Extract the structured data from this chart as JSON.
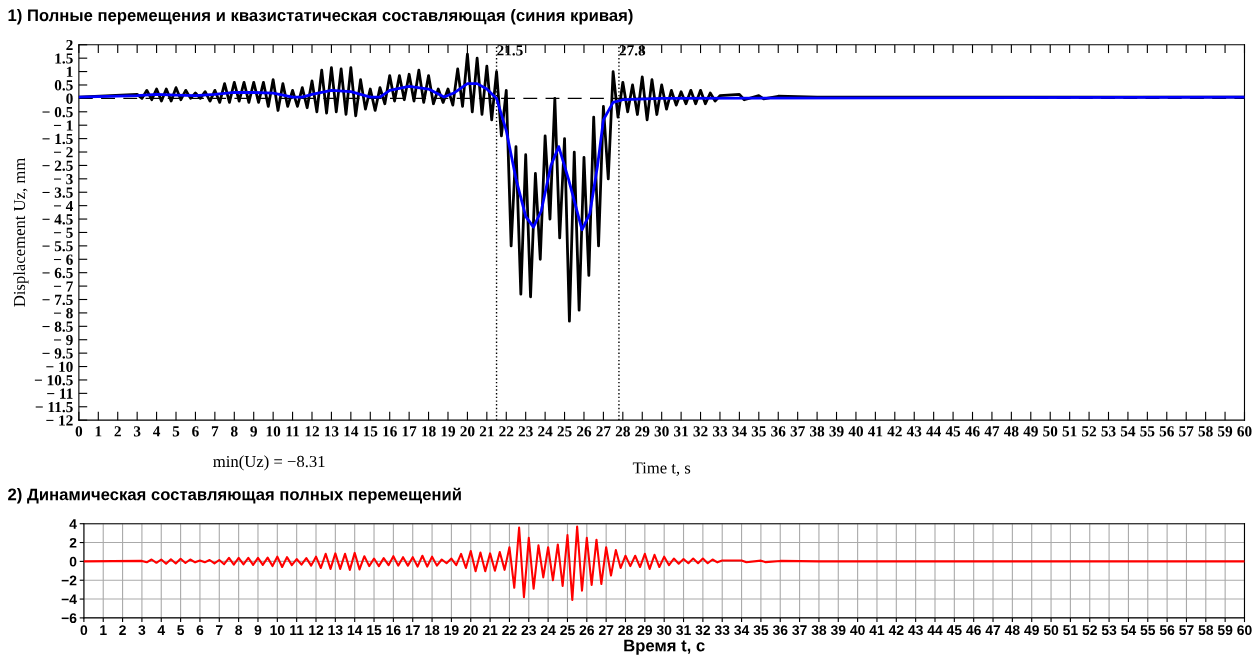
{
  "chart_data": [
    {
      "type": "line",
      "title": "1) Полные перемещения и квазистатическая составляющая (синия кривая)",
      "xlabel": "Time t, s",
      "ylabel": "Displacement Uz, mm",
      "xlim": [
        0,
        60
      ],
      "xticks": [
        0,
        1,
        2,
        3,
        4,
        5,
        6,
        7,
        8,
        9,
        10,
        11,
        12,
        13,
        14,
        15,
        16,
        17,
        18,
        19,
        20,
        21,
        22,
        23,
        24,
        25,
        26,
        27,
        28,
        29,
        30,
        31,
        32,
        33,
        34,
        35,
        36,
        37,
        38,
        39,
        40,
        41,
        42,
        43,
        44,
        45,
        46,
        47,
        48,
        49,
        50,
        51,
        52,
        53,
        54,
        55,
        56,
        57,
        58,
        59,
        60
      ],
      "ylim": [
        -12,
        2
      ],
      "yticks": [
        2,
        1.5,
        1,
        0.5,
        0,
        {
          "value": -0.5,
          "label": "− 0.5"
        },
        {
          "value": -1,
          "label": "− 1"
        },
        {
          "value": -1.5,
          "label": "− 1.5"
        },
        {
          "value": -2,
          "label": "− 2"
        },
        {
          "value": -2.5,
          "label": "− 2.5"
        },
        {
          "value": -3,
          "label": "− 3"
        },
        {
          "value": -3.5,
          "label": "− 3.5"
        },
        {
          "value": -4,
          "label": "− 4"
        },
        {
          "value": -4.5,
          "label": "− 4.5"
        },
        {
          "value": -5,
          "label": "− 5"
        },
        {
          "value": -5.5,
          "label": "− 5.5"
        },
        {
          "value": -6,
          "label": "− 6"
        },
        {
          "value": -6.5,
          "label": "− 6.5"
        },
        {
          "value": -7,
          "label": "− 7"
        },
        {
          "value": -7.5,
          "label": "− 7.5"
        },
        {
          "value": -8,
          "label": "− 8"
        },
        {
          "value": -8.5,
          "label": "− 8.5"
        },
        {
          "value": -9,
          "label": "− 9"
        },
        {
          "value": -9.5,
          "label": "− 9.5"
        },
        {
          "value": -10,
          "label": "− 10"
        },
        {
          "value": -10.5,
          "label": "− 10.5"
        },
        {
          "value": -11,
          "label": "− 11"
        },
        {
          "value": -11.5,
          "label": "− 11.5"
        },
        {
          "value": -12,
          "label": "− 12"
        }
      ],
      "grid": false,
      "legend": false,
      "annotations": [
        "min(Uz) = −8.31"
      ],
      "ref_lines": [
        {
          "axis": "y",
          "value": 0,
          "color": "#000000",
          "line_style": "dashed"
        },
        {
          "axis": "x",
          "value": 21.5,
          "label": "21.5",
          "color": "#000000",
          "line_style": "dotted"
        },
        {
          "axis": "x",
          "value": 27.8,
          "label": "27.8",
          "color": "#000000",
          "line_style": "dotted"
        }
      ],
      "series": [
        {
          "color": "#000000",
          "x": [
            0,
            3,
            3.25,
            3.5,
            3.75,
            4,
            4.25,
            4.5,
            4.75,
            5,
            5.25,
            5.5,
            5.75,
            6,
            6.25,
            6.5,
            6.75,
            7,
            7.25,
            7.5,
            7.75,
            8,
            8.25,
            8.5,
            8.75,
            9,
            9.25,
            9.5,
            9.75,
            10,
            10.25,
            10.5,
            10.75,
            11,
            11.25,
            11.5,
            11.75,
            12,
            12.25,
            12.5,
            12.75,
            13,
            13.25,
            13.5,
            13.75,
            14,
            14.25,
            14.5,
            14.75,
            15,
            15.25,
            15.5,
            15.75,
            16,
            16.25,
            16.5,
            16.75,
            17,
            17.25,
            17.5,
            17.75,
            18,
            18.25,
            18.5,
            18.75,
            19,
            19.25,
            19.5,
            19.75,
            20,
            20.25,
            20.5,
            20.75,
            21,
            21.25,
            21.5,
            21.75,
            22,
            22.25,
            22.5,
            22.75,
            23,
            23.25,
            23.5,
            23.75,
            24,
            24.25,
            24.5,
            24.75,
            25,
            25.25,
            25.5,
            25.75,
            26,
            26.25,
            26.5,
            26.75,
            27,
            27.25,
            27.5,
            27.75,
            28,
            28.25,
            28.5,
            28.75,
            29,
            29.25,
            29.5,
            29.75,
            30,
            30.25,
            30.5,
            30.75,
            31,
            31.25,
            31.5,
            31.75,
            32,
            32.25,
            32.5,
            32.75,
            33,
            34,
            34.25,
            35,
            35.25,
            36,
            38,
            40,
            60
          ],
          "values": [
            0.05,
            0.15,
            0.0,
            0.3,
            -0.05,
            0.35,
            -0.1,
            0.35,
            -0.1,
            0.4,
            -0.05,
            0.3,
            0.0,
            0.2,
            0.0,
            0.25,
            -0.1,
            0.3,
            -0.15,
            0.55,
            -0.15,
            0.6,
            -0.1,
            0.6,
            -0.15,
            0.6,
            -0.15,
            0.6,
            -0.3,
            0.7,
            -0.45,
            0.55,
            -0.3,
            0.3,
            -0.3,
            0.4,
            -0.35,
            0.65,
            -0.5,
            1.05,
            -0.55,
            1.15,
            -0.5,
            1.1,
            -0.6,
            1.15,
            -0.65,
            0.7,
            -0.4,
            0.35,
            -0.45,
            0.4,
            -0.2,
            0.85,
            -0.1,
            0.85,
            -0.05,
            0.9,
            -0.1,
            1.05,
            -0.15,
            0.85,
            -0.2,
            0.35,
            -0.15,
            0.35,
            -0.25,
            1.1,
            -0.3,
            1.65,
            -0.5,
            1.5,
            -0.6,
            1.2,
            -0.8,
            1.0,
            -1.4,
            0.3,
            -5.5,
            -1.8,
            -7.3,
            -2.1,
            -7.4,
            -2.8,
            -6.0,
            -1.4,
            -4.5,
            0.0,
            -5.2,
            -1.5,
            -8.31,
            -2.0,
            -7.9,
            -2.2,
            -6.6,
            -0.7,
            -5.5,
            -0.3,
            -3.0,
            1.0,
            -0.7,
            0.6,
            -0.5,
            0.5,
            -0.6,
            0.8,
            -0.8,
            0.7,
            -0.6,
            0.5,
            -0.4,
            0.3,
            -0.25,
            0.25,
            -0.2,
            0.3,
            -0.2,
            0.3,
            -0.2,
            0.2,
            -0.1,
            0.1,
            0.15,
            -0.05,
            0.1,
            -0.02,
            0.08,
            0.05,
            0.05,
            0.05
          ]
        },
        {
          "color": "#0000ff",
          "x": [
            0,
            3,
            4,
            5,
            6,
            7,
            8,
            9,
            10,
            11,
            11.5,
            12,
            13,
            14,
            15,
            15.5,
            16,
            17,
            18,
            18.8,
            19.3,
            20,
            20.5,
            21,
            21.5,
            22,
            22.5,
            23,
            23.4,
            23.8,
            24.3,
            24.7,
            25.2,
            25.9,
            26.3,
            26.7,
            27,
            27.5,
            28,
            30,
            60
          ],
          "values": [
            0.05,
            0.1,
            0.15,
            0.12,
            0.1,
            0.15,
            0.22,
            0.22,
            0.2,
            0.05,
            0.05,
            0.15,
            0.3,
            0.25,
            0.05,
            0.05,
            0.3,
            0.45,
            0.35,
            0.05,
            0.2,
            0.55,
            0.55,
            0.35,
            0.0,
            -1.2,
            -3.0,
            -4.4,
            -4.8,
            -4.2,
            -2.5,
            -1.8,
            -3.0,
            -4.9,
            -4.3,
            -2.5,
            -0.8,
            -0.15,
            -0.05,
            0.0,
            0.05
          ]
        }
      ]
    },
    {
      "type": "line",
      "title": "2) Динамическая составляющая полных перемещений",
      "xlabel": "Время t, с",
      "xlim": [
        0,
        60
      ],
      "xticks": [
        0,
        1,
        2,
        3,
        4,
        5,
        6,
        7,
        8,
        9,
        10,
        11,
        12,
        13,
        14,
        15,
        16,
        17,
        18,
        19,
        20,
        21,
        22,
        23,
        24,
        25,
        26,
        27,
        28,
        29,
        30,
        31,
        32,
        33,
        34,
        35,
        36,
        37,
        38,
        39,
        40,
        41,
        42,
        43,
        44,
        45,
        46,
        47,
        48,
        49,
        50,
        51,
        52,
        53,
        54,
        55,
        56,
        57,
        58,
        59,
        60
      ],
      "ylim": [
        -6,
        4
      ],
      "yticks": [
        {
          "value": -6,
          "label": "−6"
        },
        {
          "value": -4,
          "label": "−4"
        },
        {
          "value": -2,
          "label": "−2"
        },
        0,
        2,
        4
      ],
      "grid": true,
      "legend": false,
      "series": [
        {
          "color": "#ff0000",
          "x": [
            0,
            3,
            3.25,
            3.5,
            3.75,
            4,
            4.25,
            4.5,
            4.75,
            5,
            5.25,
            5.5,
            5.75,
            6,
            6.25,
            6.5,
            6.75,
            7,
            7.25,
            7.5,
            7.75,
            8,
            8.25,
            8.5,
            8.75,
            9,
            9.25,
            9.5,
            9.75,
            10,
            10.25,
            10.5,
            10.75,
            11,
            11.25,
            11.5,
            11.75,
            12,
            12.25,
            12.5,
            12.75,
            13,
            13.25,
            13.5,
            13.75,
            14,
            14.25,
            14.5,
            14.75,
            15,
            15.25,
            15.5,
            15.75,
            16,
            16.25,
            16.5,
            16.75,
            17,
            17.25,
            17.5,
            17.75,
            18,
            18.25,
            18.5,
            18.75,
            19,
            19.25,
            19.5,
            19.75,
            20,
            20.25,
            20.5,
            20.75,
            21,
            21.25,
            21.5,
            21.75,
            22,
            22.25,
            22.5,
            22.75,
            23,
            23.25,
            23.5,
            23.75,
            24,
            24.25,
            24.5,
            24.75,
            25,
            25.25,
            25.5,
            25.75,
            26,
            26.25,
            26.5,
            26.75,
            27,
            27.25,
            27.5,
            27.75,
            28,
            28.25,
            28.5,
            28.75,
            29,
            29.25,
            29.5,
            29.75,
            30,
            30.25,
            30.5,
            30.75,
            31,
            31.25,
            31.5,
            31.75,
            32,
            32.25,
            32.5,
            32.75,
            33,
            34,
            34.25,
            35,
            35.25,
            36,
            38,
            40,
            60
          ],
          "values": [
            0.0,
            0.05,
            -0.1,
            0.2,
            -0.15,
            0.2,
            -0.25,
            0.22,
            -0.22,
            0.28,
            -0.17,
            0.2,
            -0.1,
            0.1,
            -0.1,
            0.15,
            -0.22,
            0.15,
            -0.3,
            0.37,
            -0.35,
            0.38,
            -0.32,
            0.38,
            -0.37,
            0.38,
            -0.37,
            0.4,
            -0.5,
            0.5,
            -0.6,
            0.45,
            -0.4,
            0.25,
            -0.35,
            0.35,
            -0.45,
            0.5,
            -0.7,
            0.8,
            -0.8,
            0.85,
            -0.8,
            0.8,
            -0.9,
            0.9,
            -0.85,
            0.55,
            -0.5,
            0.3,
            -0.5,
            0.35,
            -0.4,
            0.55,
            -0.45,
            0.45,
            -0.45,
            0.45,
            -0.55,
            0.6,
            -0.55,
            0.5,
            -0.45,
            0.2,
            -0.2,
            0.3,
            -0.4,
            0.8,
            -0.7,
            1.1,
            -1.05,
            0.95,
            -1.05,
            0.85,
            -1.0,
            1.0,
            -0.9,
            1.5,
            -2.8,
            3.6,
            -3.8,
            2.5,
            -2.9,
            1.7,
            -1.7,
            1.5,
            -2.0,
            1.8,
            -2.6,
            2.8,
            -4.1,
            3.7,
            -3.1,
            2.5,
            -2.5,
            2.3,
            -2.4,
            1.5,
            -1.5,
            1.2,
            -0.7,
            0.6,
            -0.5,
            0.6,
            -0.6,
            0.8,
            -0.8,
            0.7,
            -0.6,
            0.5,
            -0.4,
            0.3,
            -0.25,
            0.25,
            -0.2,
            0.3,
            -0.2,
            0.3,
            -0.2,
            0.2,
            -0.1,
            0.1,
            0.1,
            -0.1,
            0.08,
            -0.08,
            0.05,
            0.0,
            0.0,
            0.0
          ]
        }
      ]
    }
  ]
}
